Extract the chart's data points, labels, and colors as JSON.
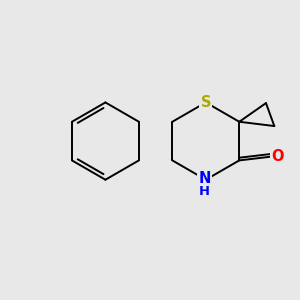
{
  "background_color": "#e8e8e8",
  "bond_color": "#000000",
  "S_color": "#aaaa00",
  "N_color": "#0000ff",
  "O_color": "#ff0000",
  "S_label": "S",
  "N_label": "N",
  "H_label": "H",
  "O_label": "O",
  "font_size": 10.5,
  "lw": 1.4
}
